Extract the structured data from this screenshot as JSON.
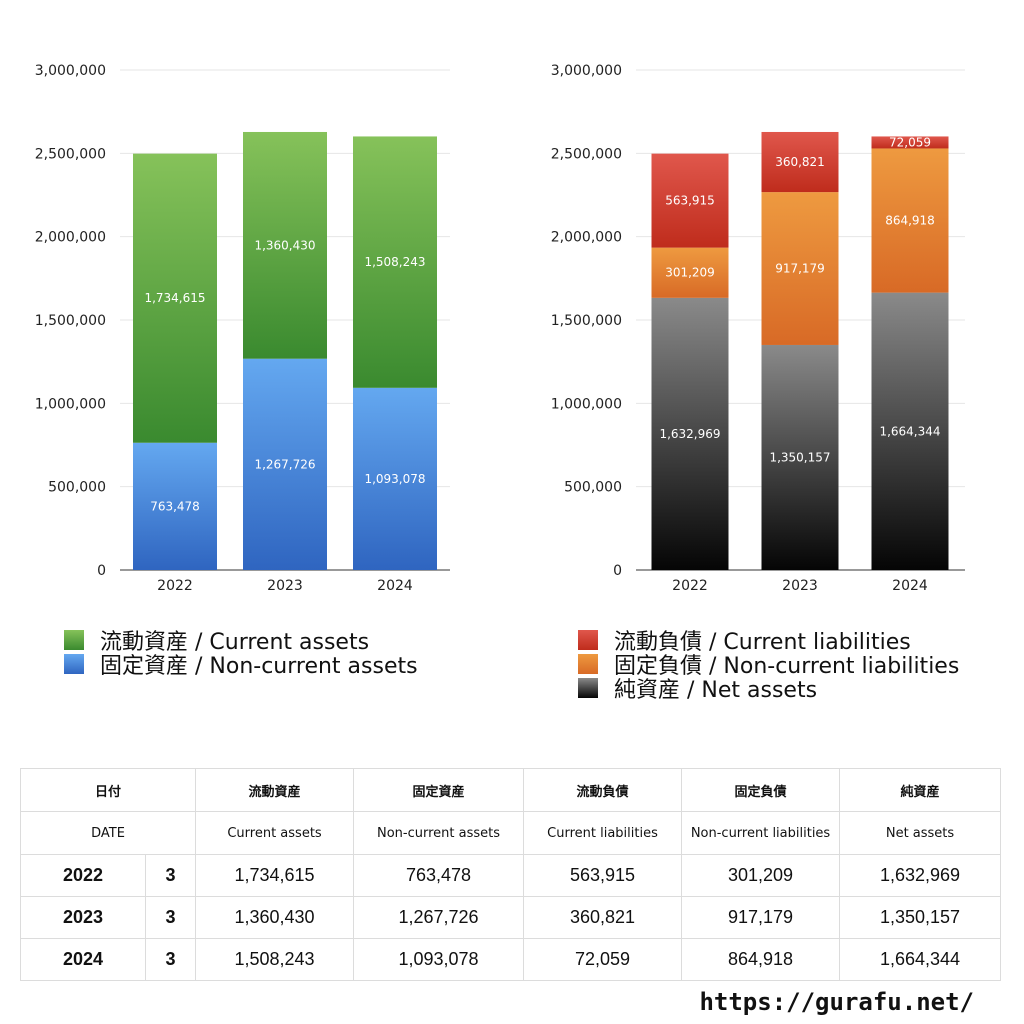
{
  "chart_data": [
    {
      "type": "bar",
      "stacked": true,
      "categories": [
        "2022",
        "2023",
        "2024"
      ],
      "ylim": [
        0,
        3000000
      ],
      "yticks": [
        0,
        500000,
        1000000,
        1500000,
        2000000,
        2500000,
        3000000
      ],
      "ytick_labels": [
        "0",
        "500,000",
        "1,000,000",
        "1,500,000",
        "2,000,000",
        "2,500,000",
        "3,000,000"
      ],
      "grid": true,
      "legend_position": "bottom",
      "series": [
        {
          "name": "固定資産 / Non-current assets",
          "values": [
            763478,
            1267726,
            1093078
          ],
          "labels": [
            "763,478",
            "1,267,726",
            "1,093,078"
          ],
          "color_top": "#64a8f0",
          "color_bottom": "#2f65c0"
        },
        {
          "name": "流動資産 / Current assets",
          "values": [
            1734615,
            1360430,
            1508243
          ],
          "labels": [
            "1,734,615",
            "1,360,430",
            "1,508,243"
          ],
          "color_top": "#86c25a",
          "color_bottom": "#3a8a2f"
        }
      ],
      "legend_order": [
        1,
        0
      ]
    },
    {
      "type": "bar",
      "stacked": true,
      "categories": [
        "2022",
        "2023",
        "2024"
      ],
      "ylim": [
        0,
        3000000
      ],
      "yticks": [
        0,
        500000,
        1000000,
        1500000,
        2000000,
        2500000,
        3000000
      ],
      "ytick_labels": [
        "0",
        "500,000",
        "1,000,000",
        "1,500,000",
        "2,000,000",
        "2,500,000",
        "3,000,000"
      ],
      "grid": true,
      "legend_position": "bottom",
      "series": [
        {
          "name": "純資産 / Net assets",
          "values": [
            1632969,
            1350157,
            1664344
          ],
          "labels": [
            "1,632,969",
            "1,350,157",
            "1,664,344"
          ],
          "color_top": "#8a8a8a",
          "color_bottom": "#050505"
        },
        {
          "name": "固定負債 / Non-current liabilities",
          "values": [
            301209,
            917179,
            864918
          ],
          "labels": [
            "301,209",
            "917,179",
            "864,918"
          ],
          "color_top": "#ee9a40",
          "color_bottom": "#d86a26"
        },
        {
          "name": "流動負債 / Current liabilities",
          "values": [
            563915,
            360821,
            72059
          ],
          "labels": [
            "563,915",
            "360,821",
            "72,059"
          ],
          "color_top": "#e0574c",
          "color_bottom": "#bf2c1c"
        }
      ],
      "legend_order": [
        2,
        1,
        0
      ]
    }
  ],
  "table": {
    "header_jp": [
      "日付",
      "流動資産",
      "固定資産",
      "流動負債",
      "固定負債",
      "純資産"
    ],
    "header_en": [
      "DATE",
      "Current assets",
      "Non-current assets",
      "Current liabilities",
      "Non-current liabilities",
      "Net assets"
    ],
    "rows": [
      {
        "year": "2022",
        "month": "3",
        "values": [
          "1,734,615",
          "763,478",
          "563,915",
          "301,209",
          "1,632,969"
        ]
      },
      {
        "year": "2023",
        "month": "3",
        "values": [
          "1,360,430",
          "1,267,726",
          "360,821",
          "917,179",
          "1,350,157"
        ]
      },
      {
        "year": "2024",
        "month": "3",
        "values": [
          "1,508,243",
          "1,093,078",
          "72,059",
          "864,918",
          "1,664,344"
        ]
      }
    ]
  },
  "footer": {
    "site": "https://gurafu.net/"
  }
}
